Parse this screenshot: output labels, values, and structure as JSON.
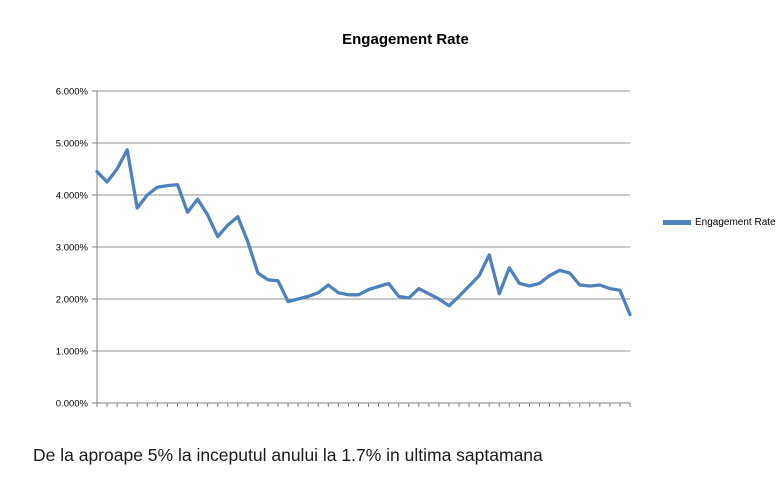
{
  "title": "Engagement Rate",
  "legend": {
    "label": "Engagement Rate"
  },
  "caption": "De la aproape 5% la inceputul anului la 1.7% in ultima saptamana",
  "colors": {
    "line": "#4F81BD",
    "gridline": "#919191",
    "axis": "#808080",
    "tick_text": "#000000"
  },
  "chart_data": {
    "type": "line",
    "title": "Engagement Rate",
    "xlabel": "",
    "ylabel": "",
    "ylim": [
      0,
      6
    ],
    "grid": true,
    "legend_position": "right",
    "y_tick_labels": [
      "6.000%",
      "5.000%",
      "4.000%",
      "3.000%",
      "2.000%",
      "1.000%",
      "0.000%"
    ],
    "x_tick_labels_visible": false,
    "series": [
      {
        "name": "Engagement Rate",
        "unit": "%",
        "values": [
          4.45,
          4.25,
          4.5,
          4.87,
          3.75,
          4.0,
          4.15,
          4.18,
          4.2,
          3.67,
          3.92,
          3.62,
          3.2,
          3.42,
          3.58,
          3.1,
          2.5,
          2.37,
          2.35,
          1.95,
          2.0,
          2.05,
          2.12,
          2.27,
          2.12,
          2.08,
          2.08,
          2.18,
          2.24,
          2.3,
          2.05,
          2.02,
          2.2,
          2.1,
          2.0,
          1.87,
          2.05,
          2.25,
          2.45,
          2.85,
          2.1,
          2.6,
          2.3,
          2.25,
          2.3,
          2.45,
          2.55,
          2.5,
          2.27,
          2.25,
          2.27,
          2.2,
          2.17,
          1.7
        ]
      }
    ]
  }
}
